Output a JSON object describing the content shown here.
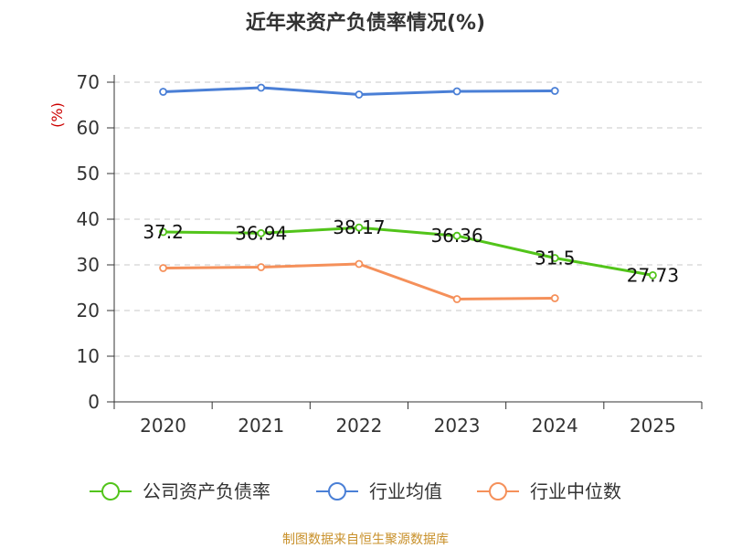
{
  "chart_data": {
    "type": "line",
    "title": "近年来资产负债率情况(%)",
    "ylabel": "(%)",
    "ylim": [
      0,
      70
    ],
    "yticks": [
      0,
      10,
      20,
      30,
      40,
      50,
      60,
      70
    ],
    "categories": [
      "2020",
      "2021",
      "2022",
      "2023",
      "2024",
      "2025"
    ],
    "grid": true,
    "legend_position": "bottom",
    "series": [
      {
        "name": "公司资产负债率",
        "color": "#52c41a",
        "values": [
          37.2,
          36.94,
          38.17,
          36.36,
          31.5,
          27.73
        ],
        "data_labels": [
          "37.2",
          "36.94",
          "38.17",
          "36.36",
          "31.5",
          "27.73"
        ]
      },
      {
        "name": "行业均值",
        "color": "#4a7fd6",
        "values": [
          67.9,
          68.8,
          67.3,
          68.0,
          68.1,
          null
        ]
      },
      {
        "name": "行业中位数",
        "color": "#f5905a",
        "values": [
          29.3,
          29.5,
          30.2,
          22.5,
          22.7,
          null
        ]
      }
    ]
  },
  "source": "制图数据来自恒生聚源数据库"
}
